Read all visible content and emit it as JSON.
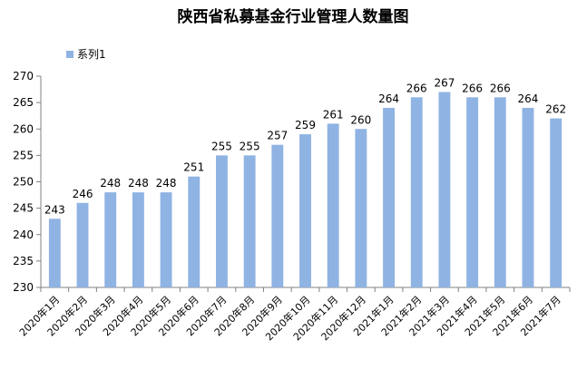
{
  "chart_data": {
    "type": "bar",
    "title": "陕西省私募基金行业管理人数量图",
    "categories": [
      "2020年1月",
      "2020年2月",
      "2020年3月",
      "2020年4月",
      "2020年5月",
      "2020年6月",
      "2020年7月",
      "2020年8月",
      "2020年9月",
      "2020年10月",
      "2020年11月",
      "2020年12月",
      "2021年1月",
      "2021年2月",
      "2021年3月",
      "2021年4月",
      "2021年5月",
      "2021年6月",
      "2021年7月"
    ],
    "series": [
      {
        "name": "系列1",
        "values": [
          243,
          246,
          248,
          248,
          248,
          251,
          255,
          255,
          257,
          259,
          261,
          260,
          264,
          266,
          267,
          266,
          266,
          264,
          262
        ]
      }
    ],
    "ylim": [
      230,
      270
    ],
    "yticks": [
      230,
      235,
      240,
      245,
      250,
      255,
      260,
      265,
      270
    ],
    "xlabel": "",
    "ylabel": "",
    "grid": false,
    "legend_position": "top-left",
    "bar_color": "#8FB3E3",
    "axis_color": "#808080"
  }
}
